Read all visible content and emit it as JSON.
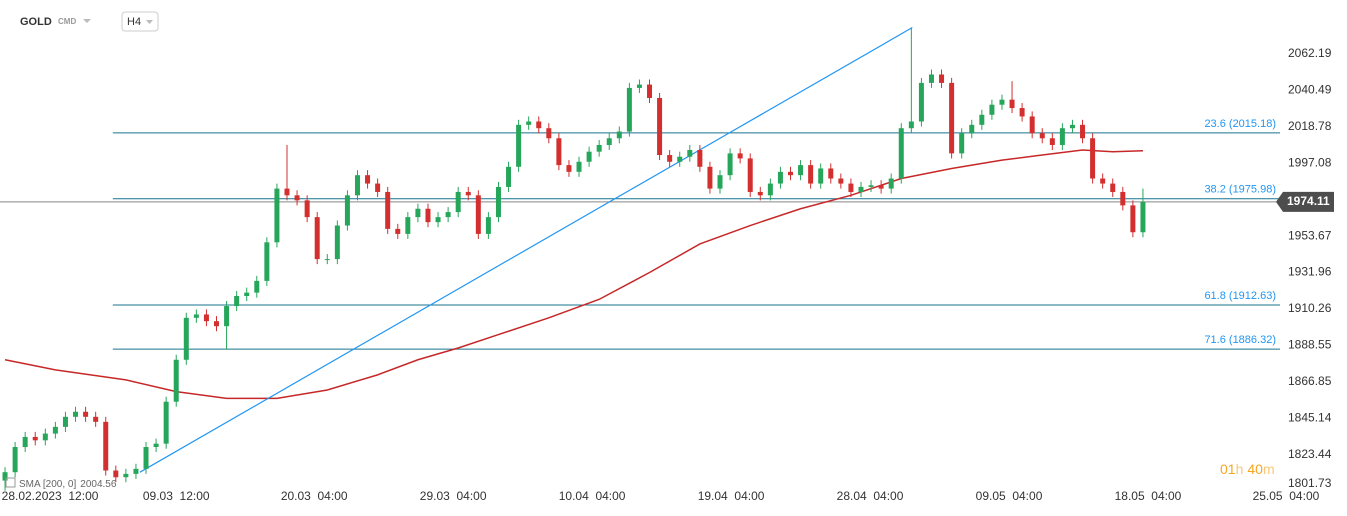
{
  "header": {
    "symbol": "GOLD",
    "market": "CMD",
    "timeframe": "H4"
  },
  "chart_data": {
    "type": "candlestick",
    "xlim": [
      -0.5,
      128
    ],
    "xticks": [
      {
        "value": 4.47,
        "label": "28.02.2023  12:00"
      },
      {
        "value": 17.0,
        "label": "09.03  12:00"
      },
      {
        "value": 30.7,
        "label": "20.03  04:00"
      },
      {
        "value": 44.5,
        "label": "29.03  04:00"
      },
      {
        "value": 58.3,
        "label": "10.04  04:00"
      },
      {
        "value": 72.1,
        "label": "19.04  04:00"
      },
      {
        "value": 85.9,
        "label": "28.04  04:00"
      },
      {
        "value": 99.7,
        "label": "09.05  04:00"
      },
      {
        "value": 113.5,
        "label": "18.05  04:00"
      },
      {
        "value": 127.2,
        "label": "25.05  04:00"
      }
    ],
    "ylim": [
      1800,
      2094.4
    ],
    "yticks": [
      2062.19,
      2040.49,
      2018.78,
      1997.08,
      1953.67,
      1931.96,
      1910.26,
      1888.55,
      1866.85,
      1845.14,
      1823.44,
      1801.73
    ],
    "up_color": "#26a65b",
    "down_color": "#d32f2f",
    "open": [
      1808,
      1813,
      1828,
      1834,
      1832,
      1836,
      1840,
      1846,
      1849,
      1846,
      1843,
      1814,
      1810,
      1812,
      1815,
      1828,
      1830,
      1855,
      1880,
      1905,
      1907,
      1903,
      1900,
      1912,
      1918,
      1920,
      1927,
      1950,
      1982,
      1978,
      1975,
      1965,
      1940,
      1940,
      1960,
      1978,
      1990,
      1985,
      1980,
      1958,
      1955,
      1965,
      1970,
      1962,
      1965,
      1968,
      1980,
      1978,
      1955,
      1965,
      1983,
      1995,
      2020,
      2022,
      2018,
      2012,
      1996,
      1992,
      1998,
      2004,
      2008,
      2012,
      2016,
      2042,
      2044,
      2036,
      2002,
      1998,
      2001,
      2005,
      1995,
      1982,
      1990,
      2003,
      2000,
      1980,
      1978,
      1985,
      1992,
      1990,
      1996,
      1985,
      1994,
      1988,
      1985,
      1980,
      1983,
      1984,
      1982,
      1988,
      2018,
      2022,
      2045,
      2050,
      2045,
      2003,
      2015,
      2020,
      2026,
      2032,
      2035,
      2030,
      2025,
      2015,
      2012,
      2008,
      2018,
      2020,
      2012,
      1988,
      1985,
      1980,
      1972,
      1956
    ],
    "high": [
      1816,
      1831,
      1837,
      1837,
      1839,
      1843,
      1849,
      1852,
      1852,
      1849,
      1846,
      1817,
      1815,
      1818,
      1831,
      1833,
      1858,
      1883,
      1908,
      1910,
      1910,
      1906,
      1915,
      1921,
      1923,
      1930,
      1953,
      1985,
      2008,
      1981,
      1978,
      1968,
      1943,
      1963,
      1981,
      1993,
      1993,
      1988,
      1983,
      1961,
      1968,
      1973,
      1973,
      1968,
      1971,
      1983,
      1983,
      1981,
      1968,
      1986,
      1998,
      2023,
      2025,
      2025,
      2021,
      2015,
      1999,
      2001,
      2007,
      2011,
      2015,
      2019,
      2045,
      2047,
      2047,
      2039,
      2005,
      2004,
      2008,
      2008,
      1998,
      1993,
      2006,
      2006,
      2003,
      1983,
      1988,
      1995,
      1995,
      1999,
      1999,
      1997,
      1997,
      1991,
      1988,
      1986,
      1987,
      1987,
      1991,
      2021,
      2078,
      2048,
      2053,
      2053,
      2048,
      2018,
      2023,
      2029,
      2035,
      2038,
      2046,
      2033,
      2028,
      2018,
      2015,
      2021,
      2023,
      2023,
      2015,
      1991,
      1988,
      1983,
      1975,
      1982
    ],
    "low": [
      1802,
      1810,
      1825,
      1829,
      1829,
      1833,
      1837,
      1843,
      1843,
      1840,
      1811,
      1807,
      1807,
      1809,
      1812,
      1825,
      1827,
      1852,
      1877,
      1902,
      1900,
      1897,
      1886,
      1909,
      1915,
      1917,
      1924,
      1947,
      1975,
      1972,
      1962,
      1937,
      1937,
      1937,
      1957,
      1975,
      1982,
      1977,
      1955,
      1952,
      1952,
      1962,
      1959,
      1959,
      1962,
      1965,
      1975,
      1952,
      1952,
      1962,
      1980,
      1992,
      2017,
      2015,
      2009,
      1993,
      1989,
      1989,
      1995,
      2001,
      2005,
      2009,
      2013,
      2039,
      2033,
      1999,
      1995,
      1995,
      1998,
      1992,
      1979,
      1979,
      1987,
      1997,
      1977,
      1975,
      1975,
      1982,
      1987,
      1987,
      1982,
      1982,
      1985,
      1982,
      1977,
      1977,
      1980,
      1979,
      1979,
      1985,
      2015,
      2019,
      2042,
      2042,
      2000,
      2000,
      2012,
      2017,
      2023,
      2029,
      2027,
      2022,
      2012,
      2009,
      2005,
      2005,
      2015,
      2009,
      1985,
      1982,
      1977,
      1969,
      1953,
      1953
    ],
    "close": [
      1813,
      1828,
      1834,
      1832,
      1836,
      1840,
      1846,
      1849,
      1846,
      1843,
      1814,
      1810,
      1812,
      1815,
      1828,
      1830,
      1855,
      1880,
      1905,
      1907,
      1903,
      1900,
      1912,
      1918,
      1920,
      1927,
      1950,
      1982,
      1978,
      1975,
      1965,
      1940,
      1940,
      1960,
      1978,
      1990,
      1985,
      1980,
      1958,
      1955,
      1965,
      1970,
      1962,
      1965,
      1968,
      1980,
      1978,
      1955,
      1965,
      1983,
      1995,
      2020,
      2022,
      2018,
      2012,
      1996,
      1992,
      1998,
      2004,
      2008,
      2012,
      2016,
      2042,
      2044,
      2036,
      2002,
      1998,
      2001,
      2005,
      1995,
      1982,
      1990,
      2003,
      2000,
      1980,
      1978,
      1985,
      1992,
      1990,
      1996,
      1985,
      1994,
      1988,
      1985,
      1980,
      1983,
      1984,
      1982,
      1988,
      2018,
      2022,
      2045,
      2050,
      2045,
      2003,
      2015,
      2020,
      2026,
      2032,
      2035,
      2030,
      2025,
      2015,
      2012,
      2008,
      2018,
      2020,
      2012,
      1988,
      1985,
      1980,
      1972,
      1956,
      1974.11
    ],
    "sma": {
      "label": "SMA [200, 0]",
      "color": "#c62828",
      "x": [
        0,
        5,
        12,
        17,
        22,
        27,
        32,
        37,
        41,
        45,
        49,
        54,
        59,
        64,
        69,
        74,
        79,
        84,
        89,
        94,
        99,
        103,
        107,
        110,
        113
      ],
      "values": [
        1880,
        1874,
        1868,
        1861,
        1857,
        1857,
        1862,
        1871,
        1880,
        1887,
        1895,
        1905,
        1916,
        1932,
        1949,
        1960,
        1970,
        1978,
        1988,
        1994,
        1999,
        2002,
        2005,
        2004,
        2004.56
      ]
    },
    "trendline": {
      "color": "#2196f3",
      "x": [
        13.4,
        90.1
      ],
      "y": [
        1813,
        2078
      ]
    },
    "fib_levels": {
      "color": "#17738f",
      "label_color": "#2196f3",
      "x_from": 10.7,
      "levels": [
        {
          "value": 2015.18,
          "label": "23.6 (2015.18)"
        },
        {
          "value": 1975.98,
          "label": "38.2 (1975.98)"
        },
        {
          "value": 1912.63,
          "label": "61.8 (1912.63)"
        },
        {
          "value": 1886.32,
          "label": "71.6 (1886.32)"
        }
      ]
    },
    "countdown": [
      "01",
      "h",
      "40",
      "m"
    ]
  }
}
